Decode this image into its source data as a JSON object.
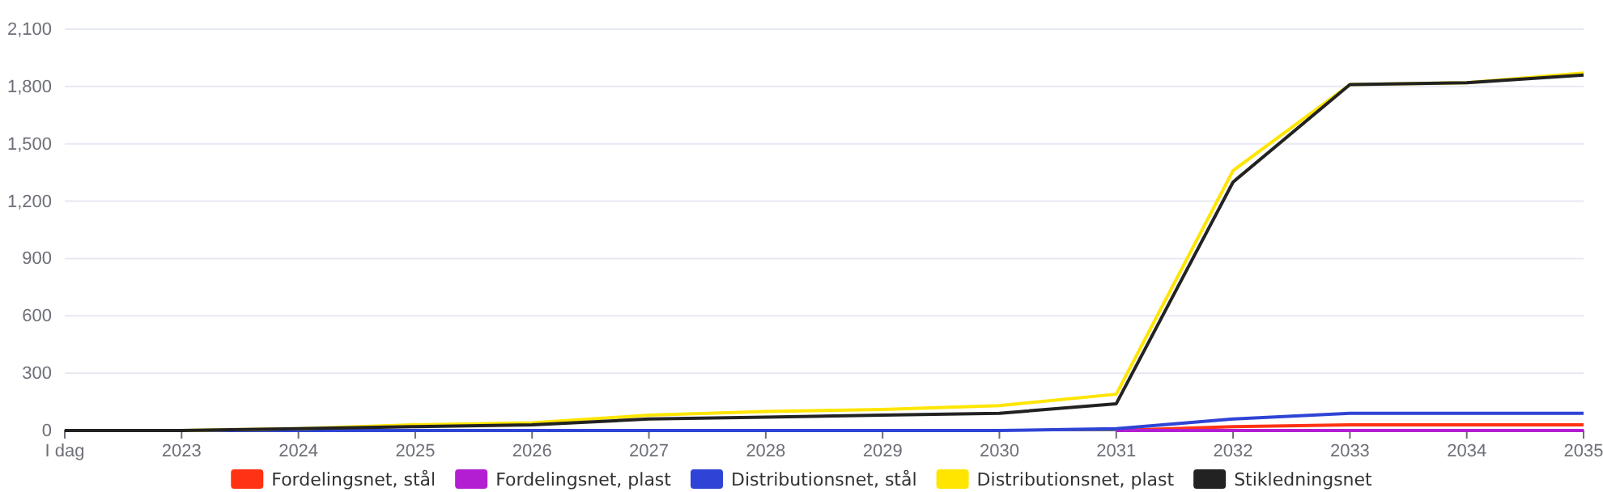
{
  "chart_data": {
    "type": "line",
    "categories": [
      "I dag",
      "2023",
      "2024",
      "2025",
      "2026",
      "2027",
      "2028",
      "2029",
      "2030",
      "2031",
      "2032",
      "2033",
      "2034",
      "2035"
    ],
    "series": [
      {
        "name": "Fordelingsnet, stål",
        "color": "#ff3314",
        "values": [
          null,
          null,
          null,
          null,
          null,
          null,
          null,
          null,
          null,
          0,
          20,
          30,
          30,
          30
        ]
      },
      {
        "name": "Fordelingsnet, plast",
        "color": "#b31ed2",
        "values": [
          null,
          null,
          null,
          null,
          null,
          null,
          null,
          null,
          null,
          0,
          0,
          0,
          0,
          0
        ]
      },
      {
        "name": "Distributionsnet, stål",
        "color": "#2e44d6",
        "values": [
          0,
          0,
          0,
          0,
          0,
          0,
          0,
          0,
          0,
          10,
          60,
          90,
          90,
          90
        ]
      },
      {
        "name": "Distributionsnet, plast",
        "color": "#ffe500",
        "values": [
          0,
          0,
          10,
          30,
          40,
          80,
          100,
          110,
          130,
          190,
          1360,
          1810,
          1820,
          1870
        ]
      },
      {
        "name": "Stikledningsnet",
        "color": "#222222",
        "values": [
          0,
          0,
          10,
          20,
          30,
          60,
          70,
          80,
          90,
          140,
          1300,
          1810,
          1820,
          1860
        ]
      }
    ],
    "ylim": [
      0,
      2100
    ],
    "yticks": [
      {
        "value": 0,
        "label": "0"
      },
      {
        "value": 300,
        "label": "300"
      },
      {
        "value": 600,
        "label": "600"
      },
      {
        "value": 900,
        "label": "900"
      },
      {
        "value": 1200,
        "label": "1,200"
      },
      {
        "value": 1500,
        "label": "1,500"
      },
      {
        "value": 1800,
        "label": "1,800"
      },
      {
        "value": 2100,
        "label": "2,100"
      }
    ],
    "grid": "y",
    "legend": "bottom",
    "marker": "none",
    "line_style": "solid"
  }
}
